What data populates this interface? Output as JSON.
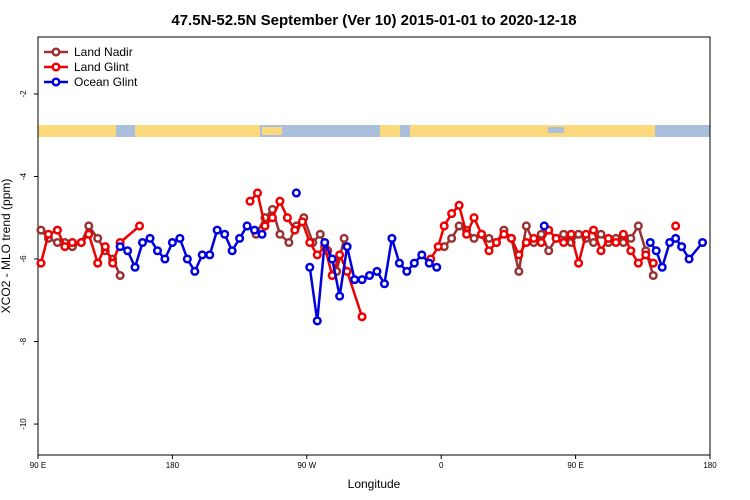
{
  "chart_data": {
    "type": "line",
    "title": "47.5N-52.5N September (Ver 10)   2015-01-01 to 2020-12-18",
    "x_label": "Longitude",
    "y_label": "XCO2 - MLO trend (ppm)",
    "xlim": [
      90,
      540
    ],
    "xticks": [
      {
        "value": 90,
        "label": "90 E"
      },
      180,
      {
        "value": 270,
        "label": "90 W"
      },
      {
        "value": 360,
        "label": "0"
      },
      {
        "value": 450,
        "label": "90 E"
      },
      {
        "value": 540,
        "label": "180"
      }
    ],
    "ylim": [
      -10.75,
      -0.62
    ],
    "yticks": [
      -2,
      -4,
      -6,
      -8,
      -10
    ],
    "legend": "top-left",
    "series": [
      {
        "name": "Land Nadir",
        "color": "#993333",
        "x": [
          92,
          97,
          103,
          108,
          113,
          119,
          124,
          130,
          135,
          140,
          145,
          200,
          236,
          242,
          247,
          252,
          258,
          263,
          268,
          274,
          279,
          284,
          290,
          295,
          330,
          362,
          367,
          372,
          377,
          382,
          387,
          392,
          397,
          402,
          407,
          412,
          417,
          422,
          427,
          432,
          437,
          442,
          447,
          452,
          457,
          462,
          467,
          472,
          477,
          482,
          487,
          492,
          497,
          502
        ],
        "values": [
          -5.3,
          -5.5,
          -5.6,
          -5.6,
          -5.7,
          -5.6,
          -5.2,
          -5.5,
          -5.8,
          -6.0,
          -6.4,
          null,
          -5.4,
          -5.0,
          -4.8,
          -5.4,
          -5.6,
          -5.2,
          -5.0,
          -5.6,
          -5.4,
          -5.8,
          -6.3,
          -5.5,
          null,
          -5.7,
          -5.5,
          -5.2,
          -5.3,
          -5.5,
          -5.4,
          -5.5,
          -5.6,
          -5.3,
          -5.5,
          -6.3,
          -5.2,
          -5.6,
          -5.4,
          -5.8,
          -5.5,
          -5.4,
          -5.6,
          -5.4,
          -5.5,
          -5.6,
          -5.4,
          -5.6,
          -5.5,
          -5.6,
          -5.5,
          -5.2,
          -5.8,
          -6.4
        ]
      },
      {
        "name": "Land Glint",
        "color": "#ee0000",
        "x": [
          92,
          97,
          103,
          108,
          113,
          119,
          124,
          130,
          135,
          140,
          145,
          158,
          200,
          232,
          237,
          242,
          247,
          252,
          257,
          262,
          267,
          272,
          277,
          282,
          287,
          292,
          297,
          307,
          330,
          353,
          358,
          362,
          367,
          372,
          377,
          382,
          387,
          392,
          397,
          402,
          407,
          412,
          417,
          422,
          427,
          432,
          437,
          442,
          447,
          452,
          457,
          462,
          467,
          472,
          477,
          482,
          487,
          492,
          497,
          502,
          508,
          517
        ],
        "values": [
          -6.1,
          -5.4,
          -5.3,
          -5.7,
          -5.6,
          -5.6,
          -5.4,
          -6.1,
          -5.7,
          -6.1,
          -5.6,
          -5.2,
          null,
          -4.6,
          -4.4,
          -5.2,
          -5.0,
          -4.6,
          -5.0,
          -5.3,
          -5.1,
          -5.6,
          -5.9,
          -5.7,
          -6.4,
          -5.9,
          -6.3,
          -7.4,
          null,
          -6.0,
          -5.7,
          -5.2,
          -4.9,
          -4.7,
          -5.4,
          -5.0,
          -5.4,
          -5.8,
          -5.6,
          -5.4,
          -5.5,
          -5.9,
          -5.6,
          -5.5,
          -5.6,
          -5.3,
          -5.5,
          -5.6,
          -5.4,
          -6.1,
          -5.4,
          -5.3,
          -5.8,
          -5.5,
          -5.6,
          -5.4,
          -5.8,
          -6.1,
          -5.9,
          -6.1,
          null,
          -5.2
        ]
      },
      {
        "name": "Ocean Glint",
        "color": "#0000dd",
        "x": [
          145,
          150,
          155,
          160,
          165,
          170,
          175,
          180,
          185,
          190,
          195,
          200,
          205,
          210,
          215,
          220,
          225,
          230,
          235,
          240,
          248,
          263,
          268,
          272,
          277,
          282,
          287,
          292,
          297,
          302,
          307,
          312,
          317,
          322,
          327,
          332,
          337,
          342,
          347,
          352,
          357,
          380,
          429,
          460,
          500,
          504,
          508,
          513,
          517,
          521,
          526,
          535
        ],
        "values": [
          -5.7,
          -5.8,
          -6.2,
          -5.6,
          -5.5,
          -5.8,
          -6.0,
          -5.6,
          -5.5,
          -6.0,
          -6.3,
          -5.9,
          -5.9,
          -5.3,
          -5.4,
          -5.8,
          -5.5,
          -5.2,
          -5.3,
          -5.4,
          null,
          -4.4,
          null,
          -6.2,
          -7.5,
          -5.6,
          -6.0,
          -6.9,
          -5.7,
          -6.5,
          -6.5,
          -6.4,
          -6.3,
          -6.6,
          -5.5,
          -6.1,
          -6.3,
          -6.1,
          -5.9,
          -6.1,
          -6.2,
          null,
          -5.2,
          null,
          -5.6,
          -5.8,
          -6.2,
          -5.6,
          -5.5,
          -5.7,
          -6.0,
          -5.6
        ]
      }
    ]
  }
}
